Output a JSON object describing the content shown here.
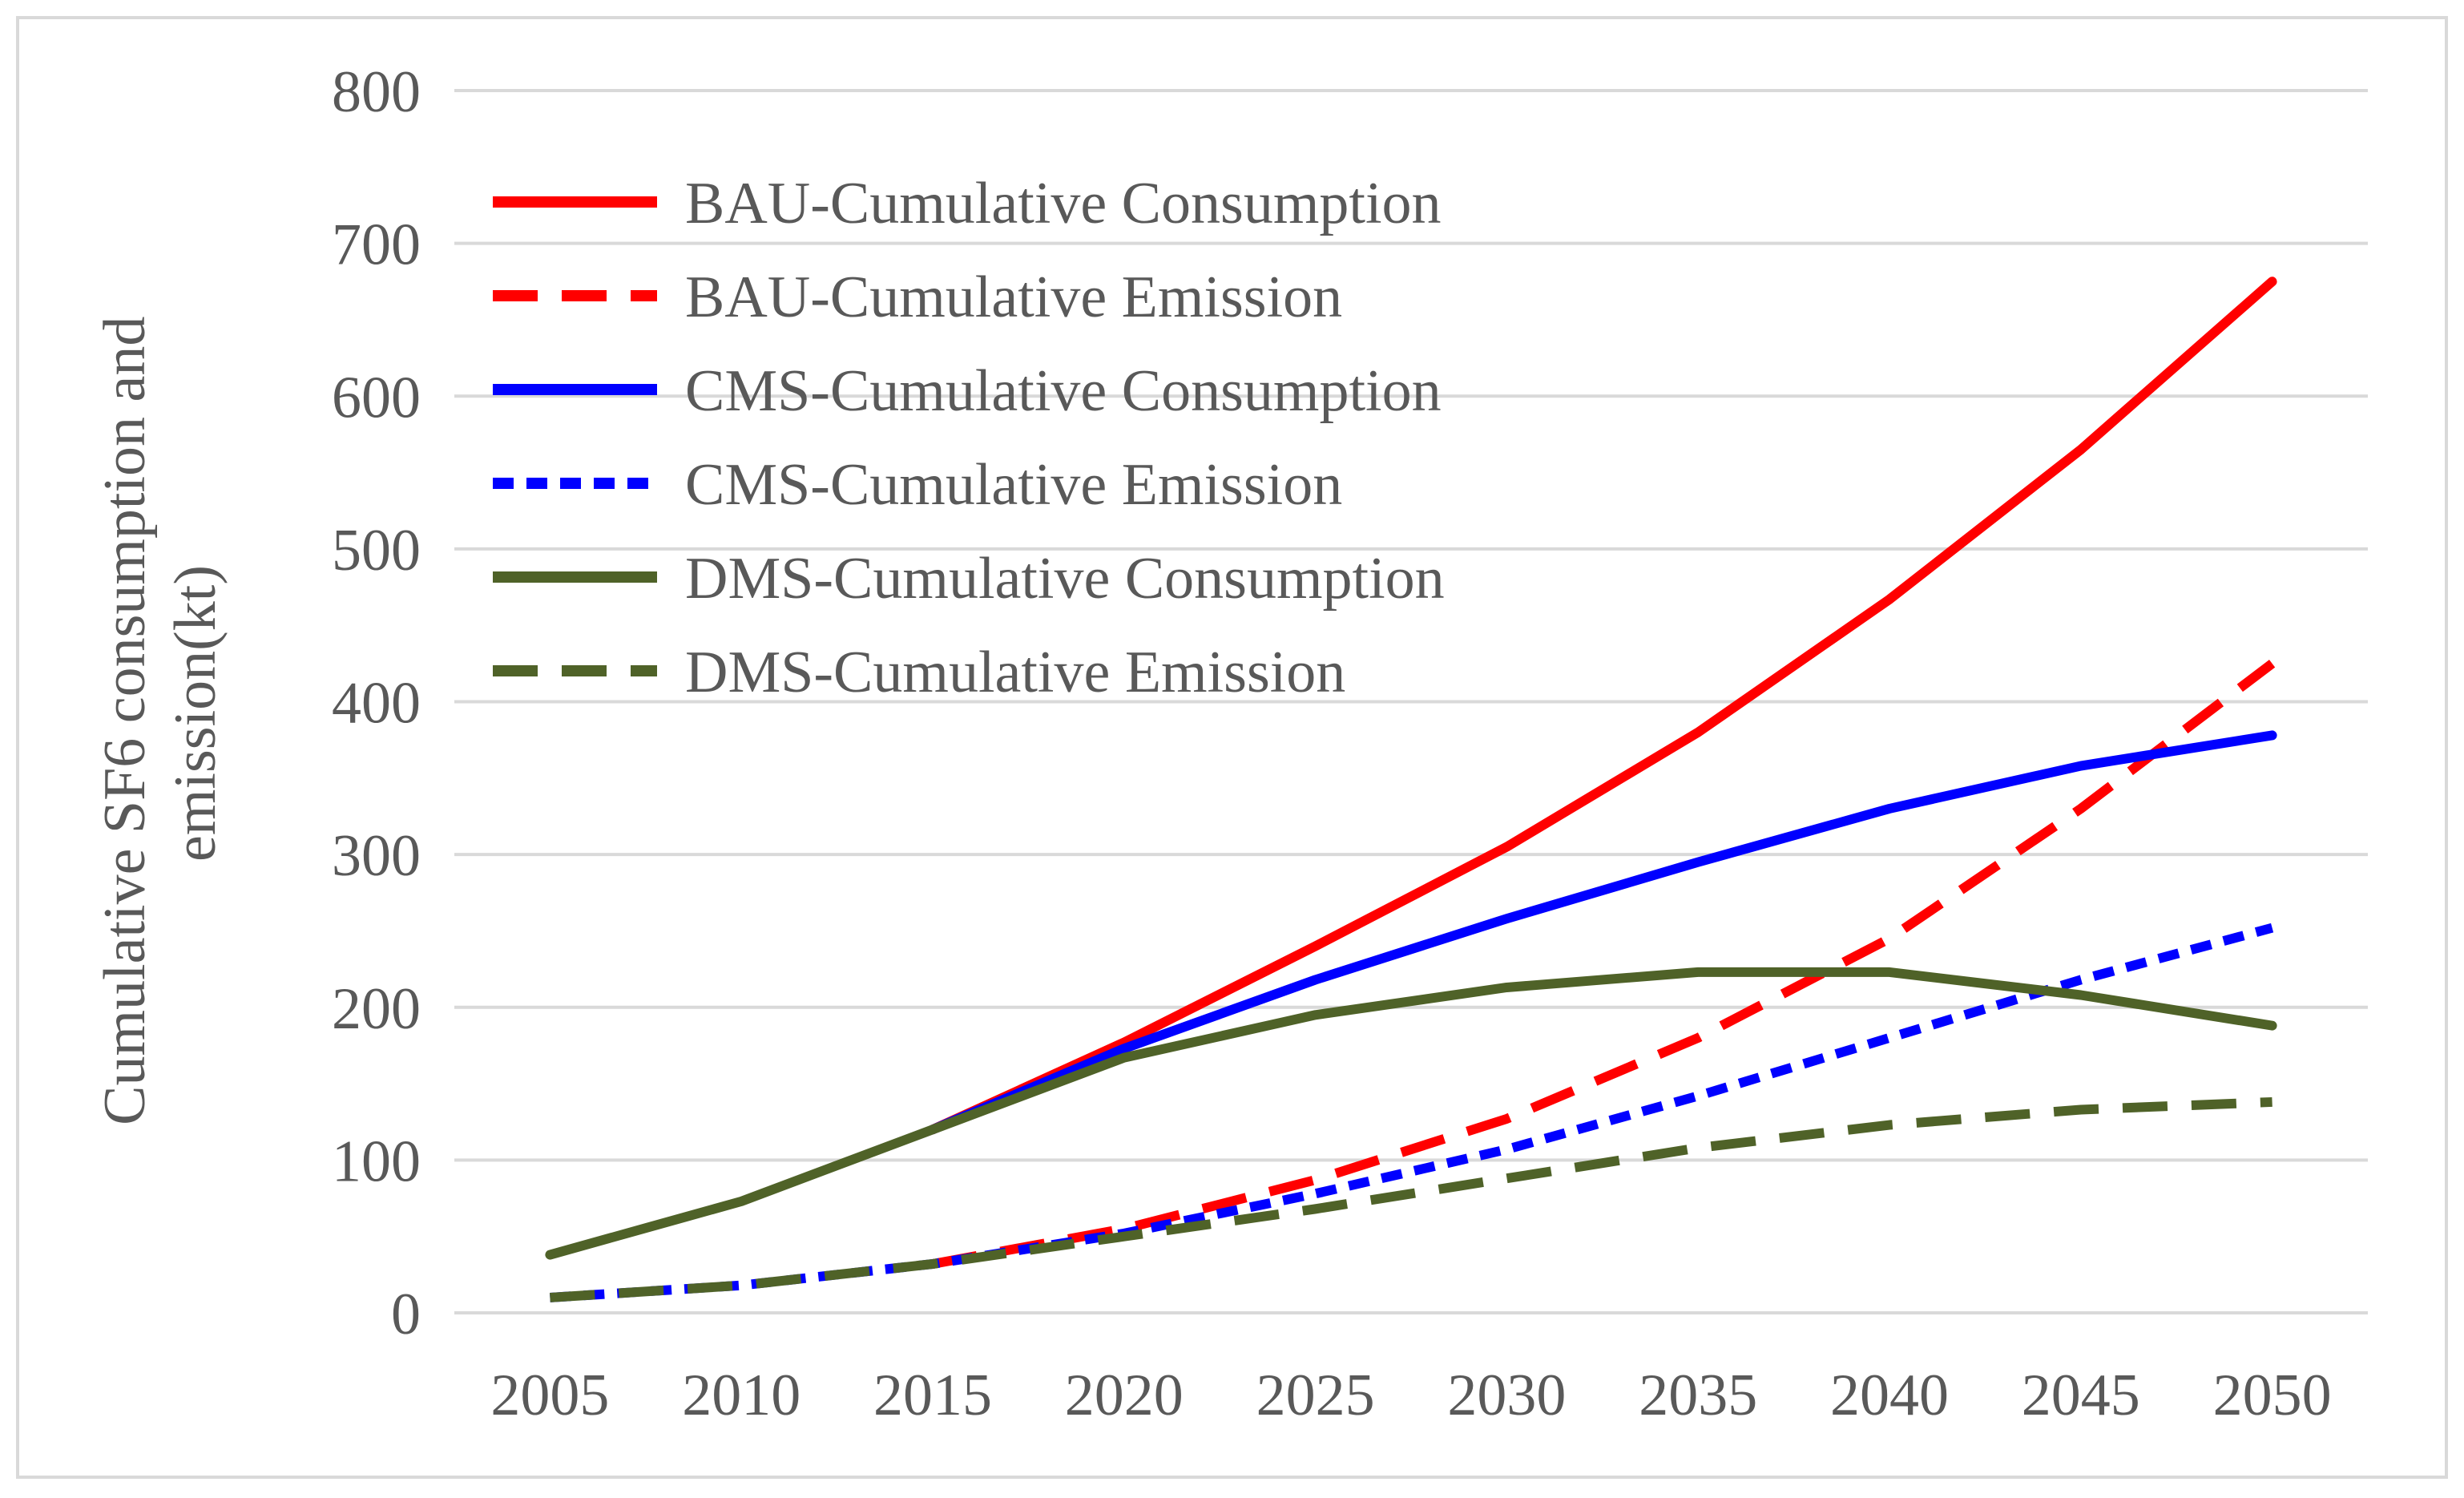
{
  "chart_data": {
    "type": "line",
    "title": "",
    "xlabel": "",
    "ylabel_lines": [
      "Cumulative SF6 consumption and",
      "emission(kt)"
    ],
    "categories": [
      "2005",
      "2010",
      "2015",
      "2020",
      "2025",
      "2030",
      "2035",
      "2040",
      "2045",
      "2050"
    ],
    "ylim": [
      0,
      800
    ],
    "yticks": [
      "0",
      "100",
      "200",
      "300",
      "400",
      "500",
      "600",
      "700",
      "800"
    ],
    "grid": true,
    "legend_position": "top-left",
    "series": [
      {
        "name": "BAU-Cumulative Consumption",
        "color": "#ff0000",
        "dash": "solid",
        "values": [
          null,
          null,
          120,
          177,
          240,
          305,
          380,
          467,
          565,
          675
        ]
      },
      {
        "name": "BAU-Cumulative Emission",
        "color": "#ff0000",
        "dash": "dash",
        "values": [
          null,
          null,
          32,
          55,
          87,
          127,
          180,
          245,
          330,
          425
        ]
      },
      {
        "name": "CMS-Cumulative Consumption",
        "color": "#0000ff",
        "dash": "solid",
        "values": [
          null,
          null,
          120,
          173,
          218,
          258,
          295,
          330,
          358,
          378
        ]
      },
      {
        "name": "CMS-Cumulative Emission",
        "color": "#0000ff",
        "dash": "dot",
        "values": [
          10,
          18,
          32,
          52,
          78,
          107,
          142,
          180,
          218,
          252
        ]
      },
      {
        "name": "DMS-Cumulative Consumption",
        "color": "#4f6228",
        "dash": "solid",
        "values": [
          38,
          73,
          120,
          167,
          195,
          213,
          223,
          223,
          208,
          188
        ]
      },
      {
        "name": "DMS-Cumulative Emission",
        "color": "#4f6228",
        "dash": "dash",
        "values": [
          10,
          18,
          32,
          50,
          68,
          88,
          108,
          123,
          133,
          138
        ]
      }
    ]
  }
}
